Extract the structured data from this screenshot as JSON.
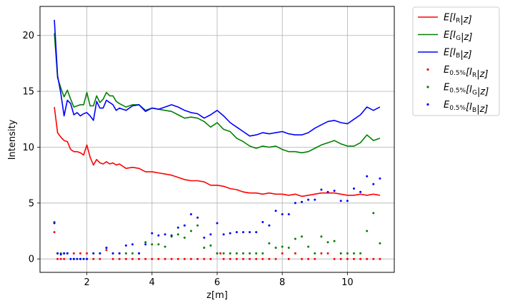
{
  "chart_data": {
    "type": "line",
    "title": "",
    "xlabel": "z[m]",
    "ylabel": "Intensity",
    "xlim": [
      0.56,
      11.44
    ],
    "ylim": [
      -1.2,
      22.6
    ],
    "xticks": [
      2,
      4,
      6,
      8,
      10
    ],
    "yticks": [
      0,
      5,
      10,
      15,
      20
    ],
    "grid": true,
    "legend_position": "outside-top-right",
    "series": [
      {
        "name": "E[I_R|z]",
        "legend": {
          "main": "E[I",
          "sub": "R",
          "rest": "|z]"
        },
        "style": "line",
        "color": "#ff0000",
        "x": [
          1.0,
          1.1,
          1.2,
          1.3,
          1.4,
          1.5,
          1.6,
          1.7,
          1.8,
          1.9,
          2.0,
          2.1,
          2.2,
          2.3,
          2.4,
          2.5,
          2.6,
          2.7,
          2.8,
          2.9,
          3.0,
          3.2,
          3.4,
          3.6,
          3.8,
          4.0,
          4.2,
          4.4,
          4.6,
          4.8,
          5.0,
          5.2,
          5.4,
          5.6,
          5.8,
          6.0,
          6.2,
          6.4,
          6.6,
          6.8,
          7.0,
          7.2,
          7.4,
          7.6,
          7.8,
          8.0,
          8.2,
          8.4,
          8.6,
          8.8,
          9.0,
          9.2,
          9.4,
          9.6,
          9.8,
          10.0,
          10.2,
          10.4,
          10.6,
          10.8,
          11.0
        ],
        "y": [
          13.6,
          11.3,
          10.9,
          10.6,
          10.5,
          9.8,
          9.6,
          9.6,
          9.5,
          9.3,
          10.2,
          9.1,
          8.4,
          8.9,
          8.6,
          8.5,
          8.7,
          8.5,
          8.6,
          8.4,
          8.5,
          8.1,
          8.2,
          8.1,
          7.8,
          7.8,
          7.7,
          7.6,
          7.5,
          7.3,
          7.1,
          7.0,
          7.0,
          6.9,
          6.6,
          6.6,
          6.5,
          6.3,
          6.2,
          6.0,
          5.9,
          5.9,
          5.8,
          5.9,
          5.8,
          5.8,
          5.7,
          5.8,
          5.6,
          5.7,
          5.8,
          5.9,
          5.9,
          5.9,
          5.8,
          5.7,
          5.7,
          5.8,
          5.7,
          5.8,
          5.7
        ]
      },
      {
        "name": "E[I_G|z]",
        "legend": {
          "main": "E[I",
          "sub": "G",
          "rest": "|z]"
        },
        "style": "line",
        "color": "#008000",
        "x": [
          1.0,
          1.1,
          1.2,
          1.3,
          1.4,
          1.5,
          1.6,
          1.7,
          1.8,
          1.9,
          2.0,
          2.1,
          2.2,
          2.3,
          2.4,
          2.5,
          2.6,
          2.7,
          2.8,
          2.9,
          3.0,
          3.2,
          3.4,
          3.6,
          3.8,
          4.0,
          4.2,
          4.4,
          4.6,
          4.8,
          5.0,
          5.2,
          5.4,
          5.6,
          5.8,
          6.0,
          6.2,
          6.4,
          6.6,
          6.8,
          7.0,
          7.2,
          7.4,
          7.6,
          7.8,
          8.0,
          8.2,
          8.4,
          8.6,
          8.8,
          9.0,
          9.2,
          9.4,
          9.6,
          9.8,
          10.0,
          10.2,
          10.4,
          10.6,
          10.8,
          11.0
        ],
        "y": [
          20.2,
          16.2,
          15.3,
          14.5,
          15.1,
          14.3,
          13.6,
          13.7,
          13.8,
          13.8,
          14.9,
          13.7,
          13.7,
          14.6,
          14.0,
          14.3,
          14.9,
          14.6,
          14.6,
          14.1,
          13.9,
          13.6,
          13.8,
          13.8,
          13.3,
          13.5,
          13.4,
          13.3,
          13.2,
          12.9,
          12.6,
          12.7,
          12.6,
          12.3,
          11.8,
          12.2,
          11.6,
          11.4,
          10.8,
          10.5,
          10.1,
          9.9,
          10.1,
          10.0,
          10.1,
          9.8,
          9.6,
          9.6,
          9.5,
          9.6,
          9.9,
          10.2,
          10.4,
          10.6,
          10.3,
          10.1,
          10.1,
          10.4,
          11.1,
          10.6,
          10.8
        ]
      },
      {
        "name": "E[I_B|z]",
        "legend": {
          "main": "E[I",
          "sub": "B",
          "rest": "|z]"
        },
        "style": "line",
        "color": "#0000ff",
        "x": [
          1.0,
          1.1,
          1.2,
          1.3,
          1.4,
          1.5,
          1.6,
          1.7,
          1.8,
          1.9,
          2.0,
          2.1,
          2.2,
          2.3,
          2.4,
          2.5,
          2.6,
          2.7,
          2.8,
          2.9,
          3.0,
          3.2,
          3.4,
          3.6,
          3.8,
          4.0,
          4.2,
          4.4,
          4.6,
          4.8,
          5.0,
          5.2,
          5.4,
          5.6,
          5.8,
          6.0,
          6.2,
          6.4,
          6.6,
          6.8,
          7.0,
          7.2,
          7.4,
          7.6,
          7.8,
          8.0,
          8.2,
          8.4,
          8.6,
          8.8,
          9.0,
          9.2,
          9.4,
          9.6,
          9.8,
          10.0,
          10.2,
          10.4,
          10.6,
          10.8,
          11.0
        ],
        "y": [
          21.4,
          16.4,
          14.8,
          12.8,
          14.2,
          13.9,
          12.9,
          13.1,
          12.8,
          13.0,
          13.1,
          12.8,
          12.4,
          14.1,
          13.5,
          13.5,
          14.2,
          14.0,
          13.8,
          13.3,
          13.5,
          13.3,
          13.7,
          13.8,
          13.2,
          13.5,
          13.4,
          13.6,
          13.8,
          13.6,
          13.3,
          13.1,
          13.0,
          12.6,
          12.9,
          13.3,
          12.8,
          12.2,
          11.8,
          11.4,
          11.0,
          11.1,
          11.3,
          11.2,
          11.3,
          11.4,
          11.2,
          11.1,
          11.1,
          11.3,
          11.7,
          12.0,
          12.3,
          12.4,
          12.2,
          12.1,
          12.5,
          12.9,
          13.6,
          13.3,
          13.6
        ]
      },
      {
        "name": "E_0.5%[I_R|z]",
        "legend": {
          "main": "E",
          "sub": "0.5%",
          "rest": "[I",
          "sub2": "R",
          "rest2": "|z]"
        },
        "style": "points",
        "color": "#ff0000",
        "x": [
          1.0,
          1.1,
          1.2,
          1.3,
          1.6,
          1.8,
          2.0,
          2.2,
          2.4,
          2.6,
          2.8,
          3.0,
          3.2,
          3.4,
          3.6,
          3.8,
          4.0,
          4.2,
          4.4,
          4.6,
          4.8,
          5.0,
          5.2,
          5.4,
          5.6,
          5.8,
          6.0,
          6.1,
          6.2,
          6.4,
          6.6,
          6.8,
          7.0,
          7.2,
          7.4,
          7.6,
          7.8,
          8.0,
          8.2,
          8.4,
          8.6,
          8.8,
          9.0,
          9.2,
          9.4,
          9.6,
          9.8,
          10.0,
          10.2,
          10.4,
          10.6,
          10.8,
          11.0
        ],
        "y": [
          2.4,
          0.0,
          0.0,
          0.0,
          0.5,
          0.5,
          0.5,
          0.0,
          0.0,
          0.8,
          0.0,
          0.0,
          0.0,
          0.0,
          0.0,
          0.0,
          0.0,
          0.0,
          0.0,
          0.0,
          0.0,
          0.0,
          0.0,
          0.0,
          0.0,
          0.0,
          0.5,
          0.5,
          0.0,
          0.0,
          0.0,
          0.0,
          0.0,
          0.0,
          0.0,
          0.0,
          0.0,
          0.5,
          0.0,
          0.5,
          0.0,
          0.0,
          0.0,
          0.5,
          0.5,
          0.0,
          0.0,
          0.0,
          0.0,
          0.0,
          0.0,
          0.0,
          0.0
        ]
      },
      {
        "name": "E_0.5%[I_G|z]",
        "legend": {
          "main": "E",
          "sub": "0.5%",
          "rest": "[I",
          "sub2": "G",
          "rest2": "|z]"
        },
        "style": "points",
        "color": "#008000",
        "x": [
          1.0,
          1.1,
          1.2,
          1.3,
          1.4,
          1.6,
          1.8,
          2.0,
          2.2,
          2.4,
          2.6,
          2.8,
          3.0,
          3.2,
          3.4,
          3.6,
          3.8,
          4.0,
          4.2,
          4.4,
          4.6,
          4.8,
          5.0,
          5.2,
          5.4,
          5.6,
          5.8,
          6.0,
          6.2,
          6.4,
          6.6,
          6.8,
          7.0,
          7.2,
          7.4,
          7.6,
          7.8,
          8.0,
          8.2,
          8.4,
          8.6,
          8.8,
          9.0,
          9.2,
          9.4,
          9.6,
          9.8,
          10.0,
          10.2,
          10.4,
          10.6,
          10.8,
          11.0
        ],
        "y": [
          3.3,
          0.5,
          0.5,
          0.5,
          0.5,
          0.0,
          0.0,
          0.0,
          0.5,
          0.5,
          1.0,
          0.5,
          0.5,
          0.5,
          0.5,
          0.5,
          1.5,
          1.3,
          1.3,
          1.1,
          2.0,
          2.2,
          1.9,
          2.5,
          3.0,
          1.0,
          1.2,
          0.5,
          0.5,
          0.5,
          0.5,
          0.5,
          0.5,
          0.5,
          0.5,
          1.4,
          1.0,
          1.1,
          1.0,
          1.8,
          2.0,
          1.1,
          0.5,
          2.0,
          1.5,
          1.6,
          0.5,
          0.5,
          0.5,
          0.5,
          2.5,
          4.1,
          1.4
        ]
      },
      {
        "name": "E_0.5%[I_B|z]",
        "legend": {
          "main": "E",
          "sub": "0.5%",
          "rest": "[I",
          "sub2": "B",
          "rest2": "|z]"
        },
        "style": "points",
        "color": "#0000ff",
        "x": [
          1.0,
          1.1,
          1.2,
          1.3,
          1.4,
          1.5,
          1.6,
          1.7,
          1.8,
          1.9,
          2.0,
          2.2,
          2.4,
          2.6,
          2.8,
          3.0,
          3.2,
          3.4,
          3.6,
          3.8,
          4.0,
          4.2,
          4.4,
          4.6,
          4.8,
          5.0,
          5.2,
          5.4,
          5.6,
          5.8,
          6.0,
          6.2,
          6.4,
          6.6,
          6.8,
          7.0,
          7.2,
          7.4,
          7.6,
          7.8,
          8.0,
          8.2,
          8.4,
          8.6,
          8.8,
          9.0,
          9.2,
          9.4,
          9.6,
          9.8,
          10.0,
          10.2,
          10.4,
          10.6,
          10.8,
          11.0
        ],
        "y": [
          3.2,
          0.5,
          0.4,
          0.5,
          0.5,
          0.0,
          0.0,
          0.0,
          0.0,
          0.0,
          0.0,
          0.5,
          0.5,
          1.0,
          0.5,
          0.5,
          1.2,
          1.3,
          0.5,
          1.3,
          2.3,
          2.1,
          2.2,
          2.1,
          2.8,
          3.0,
          4.0,
          3.7,
          1.9,
          2.2,
          3.2,
          2.2,
          2.3,
          2.4,
          2.4,
          2.4,
          2.4,
          3.3,
          3.0,
          4.3,
          4.0,
          4.0,
          5.0,
          5.1,
          5.3,
          5.3,
          6.2,
          6.0,
          6.1,
          5.2,
          5.2,
          6.3,
          6.0,
          7.4,
          6.7,
          7.2
        ]
      }
    ]
  }
}
